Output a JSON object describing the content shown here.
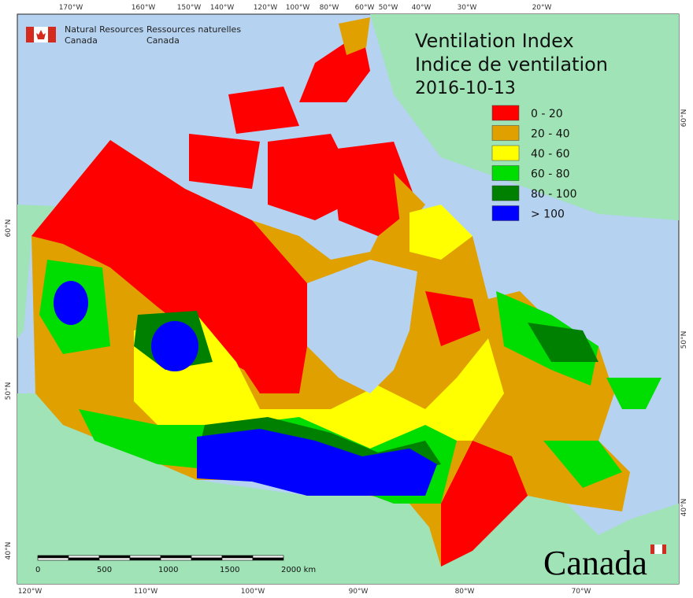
{
  "title": [
    "Ventilation Index",
    "Indice de ventilation"
  ],
  "date": "2016-10-13",
  "agency": {
    "en": [
      "Natural Resources",
      "Canada"
    ],
    "fr": [
      "Ressources naturelles",
      "Canada"
    ]
  },
  "legend": [
    {
      "label": "0 - 20",
      "color": "#ff0000"
    },
    {
      "label": "20 - 40",
      "color": "#e0a000"
    },
    {
      "label": "40 - 60",
      "color": "#ffff00"
    },
    {
      "label": "60 - 80",
      "color": "#00dd00"
    },
    {
      "label": "80 - 100",
      "color": "#008000"
    },
    {
      "label": "> 100",
      "color": "#0000ff"
    }
  ],
  "top_labels": [
    "170°W",
    "160°W",
    "150°W",
    "140°W",
    "120°W",
    "100°W",
    "80°W",
    "60°W",
    "50°W",
    "40°W",
    "30°W",
    "20°W"
  ],
  "bottom_labels": [
    "120°W",
    "110°W",
    "100°W",
    "90°W",
    "80°W",
    "70°W"
  ],
  "left_labels": [
    "60°N",
    "50°N",
    "40°N"
  ],
  "right_labels": [
    "60°N",
    "50°N",
    "40°N"
  ],
  "scale_labels": [
    "0",
    "500",
    "1000",
    "1500",
    "2000 km"
  ],
  "wordmark": "Canada"
}
